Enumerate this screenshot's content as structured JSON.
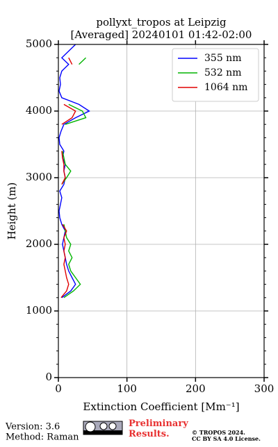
{
  "chart_data": {
    "type": "line",
    "title": "pollyxt_tropos at Leipzig",
    "subtitle": "[Averaged] 20240101 01:42-02:00",
    "x_label": "Extinction Coefficient [Mm⁻¹]",
    "y_label": "Height (m)",
    "y": [
      1200,
      1300,
      1400,
      1500,
      1600,
      1700,
      1800,
      1900,
      2000,
      2100,
      2200,
      2300,
      2400,
      2500,
      2600,
      2700,
      2800,
      2900,
      3000,
      3100,
      3200,
      3300,
      3400,
      3500,
      3600,
      3700,
      3800,
      3900,
      4000,
      4100,
      4200,
      4300,
      4400,
      4500,
      4600,
      4700,
      4800,
      4900,
      5000
    ],
    "series": [
      {
        "name": "355 nm",
        "color": "#0000ff",
        "values": [
          5,
          18,
          25,
          20,
          15,
          12,
          10,
          8,
          6,
          8,
          10,
          5,
          2,
          1,
          3,
          5,
          2,
          8,
          10,
          8,
          10,
          6,
          8,
          2,
          1,
          4,
          8,
          25,
          45,
          30,
          5,
          1,
          3,
          2,
          5,
          15,
          5,
          15,
          25
        ]
      },
      {
        "name": "532 nm",
        "color": "#00b400",
        "values": [
          8,
          22,
          32,
          25,
          18,
          15,
          20,
          15,
          18,
          12,
          10,
          8,
          null,
          null,
          null,
          null,
          null,
          5,
          12,
          18,
          10,
          8,
          6,
          null,
          null,
          null,
          10,
          40,
          35,
          15,
          null,
          null,
          null,
          null,
          null,
          30,
          40,
          null,
          null
        ]
      },
      {
        "name": "1064 nm",
        "color": "#e00000",
        "values": [
          4,
          12,
          15,
          12,
          10,
          8,
          10,
          8,
          10,
          8,
          12,
          6,
          null,
          null,
          null,
          null,
          null,
          5,
          10,
          8,
          8,
          6,
          5,
          null,
          null,
          null,
          5,
          20,
          25,
          8,
          null,
          null,
          null,
          null,
          null,
          20,
          15,
          null,
          null
        ]
      }
    ],
    "xlim": [
      0,
      300
    ],
    "xticks": [
      0,
      100,
      200,
      300
    ],
    "ylim": [
      0,
      5000
    ],
    "yticks": [
      0,
      1000,
      2000,
      3000,
      4000,
      5000
    ],
    "y_minor_ticks": [
      200,
      400,
      600,
      800,
      1200,
      1400,
      1600,
      1800,
      2200,
      2400,
      2600,
      2800,
      3200,
      3400,
      3600,
      3800,
      4200,
      4400,
      4600,
      4800
    ],
    "grid": true,
    "legend": "upper right"
  },
  "footer": {
    "version": "Version: 3.6",
    "method": "Method: Raman",
    "status": "Preliminary Results.",
    "copyright": "© TROPOS 2024.",
    "license": "CC BY SA 4.0 License."
  }
}
